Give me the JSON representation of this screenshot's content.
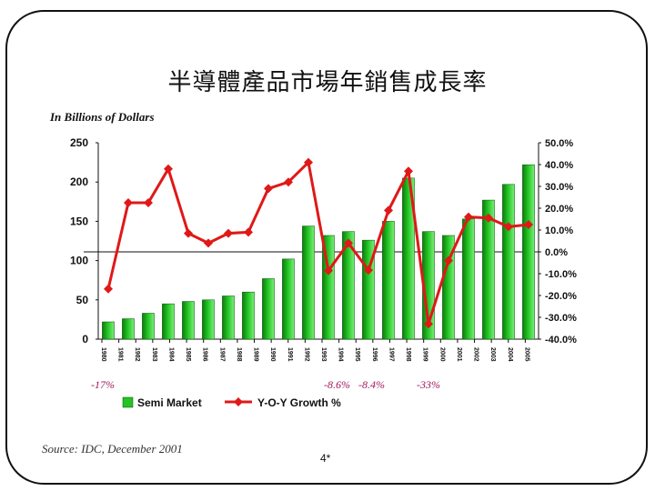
{
  "title": "半導體產品市場年銷售成長率",
  "unit_label": "In Billions of Dollars",
  "source": "Source: IDC, December 2001",
  "page_number": "4*",
  "annotations": [
    "-17%",
    "-8.6%",
    "-8.4%",
    "-33%"
  ],
  "colors": {
    "bar": "#22c422",
    "line": "#e01818"
  },
  "chart_data": {
    "type": "bar+line",
    "left_axis": {
      "ylim": [
        0,
        250
      ],
      "ticks": [
        "0",
        "50",
        "100",
        "150",
        "200",
        "250"
      ]
    },
    "right_axis": {
      "ylim": [
        -40,
        50
      ],
      "ticks": [
        "-40.0%",
        "-30.0%",
        "-20.0%",
        "-10.0%",
        "0.0%",
        "10.0%",
        "20.0%",
        "30.0%",
        "40.0%",
        "50.0%"
      ]
    },
    "x_tick_labels": [
      "1980",
      "1981",
      "1982",
      "1983",
      "1984",
      "1985",
      "1986",
      "1987",
      "1988",
      "1989",
      "1990",
      "1991",
      "1992",
      "1993",
      "1994",
      "1995",
      "1996",
      "1997",
      "1998",
      "1999",
      "2000",
      "2001",
      "2002",
      "2003",
      "2004",
      "2005"
    ],
    "series": [
      {
        "name": "Semi Market",
        "type": "bar",
        "axis": "left",
        "values": [
          22,
          26,
          33,
          45,
          48,
          50,
          55,
          60,
          77,
          102,
          144,
          132,
          137,
          126,
          150,
          205,
          137,
          132,
          153,
          177,
          197,
          222
        ]
      },
      {
        "name": "Y-O-Y Growth %",
        "type": "line",
        "axis": "right",
        "values": [
          -17,
          22.5,
          22.5,
          38,
          8.5,
          4,
          8.5,
          9,
          29,
          32,
          41,
          -8.6,
          4,
          -8.4,
          19,
          37,
          -33,
          -4,
          16,
          15.5,
          11.5,
          12.5
        ]
      }
    ],
    "legend_position": "bottom"
  }
}
